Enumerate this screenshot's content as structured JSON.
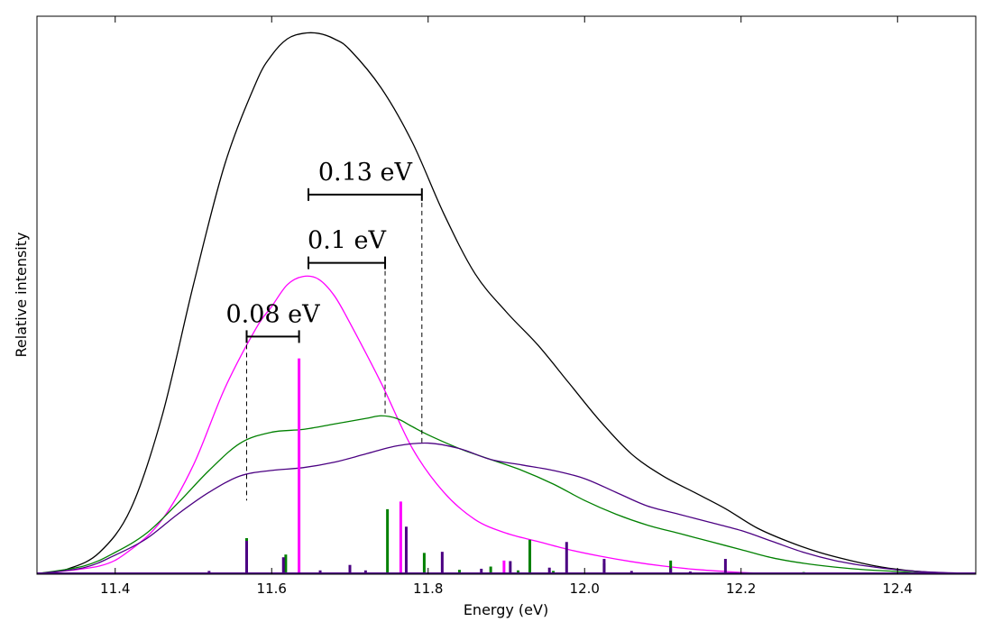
{
  "chart_data": {
    "type": "line",
    "title": "",
    "xlabel": "Energy (eV)",
    "ylabel": "Relative intensity",
    "xlim": [
      11.3,
      12.5
    ],
    "ylim": [
      0,
      1.0
    ],
    "xticks": [
      11.4,
      11.6,
      11.8,
      12.0,
      12.2,
      12.4
    ],
    "xtick_labels": [
      "11.4",
      "11.6",
      "11.8",
      "12.0",
      "12.2",
      "12.4"
    ],
    "yticks_shown": false,
    "grid": false,
    "legend": "none",
    "series": [
      {
        "color": "#000000",
        "kind": "envelope",
        "x": [
          11.3,
          11.34,
          11.38,
          11.42,
          11.46,
          11.5,
          11.54,
          11.58,
          11.6,
          11.62,
          11.64,
          11.66,
          11.68,
          11.7,
          11.74,
          11.78,
          11.82,
          11.86,
          11.9,
          11.94,
          11.98,
          12.02,
          12.06,
          12.1,
          12.14,
          12.18,
          12.22,
          12.26,
          12.3,
          12.34,
          12.38,
          12.42,
          12.46,
          12.5
        ],
        "y": [
          0.001,
          0.01,
          0.04,
          0.12,
          0.29,
          0.53,
          0.75,
          0.9,
          0.95,
          0.98,
          0.99,
          0.99,
          0.98,
          0.96,
          0.89,
          0.79,
          0.66,
          0.55,
          0.48,
          0.42,
          0.35,
          0.28,
          0.22,
          0.18,
          0.15,
          0.12,
          0.085,
          0.06,
          0.04,
          0.025,
          0.013,
          0.006,
          0.002,
          0.0007
        ]
      },
      {
        "color": "#ff00ff",
        "kind": "envelope",
        "x": [
          11.3,
          11.38,
          11.42,
          11.46,
          11.5,
          11.54,
          11.58,
          11.6,
          11.62,
          11.64,
          11.66,
          11.68,
          11.7,
          11.74,
          11.78,
          11.82,
          11.86,
          11.9,
          11.94,
          11.98,
          12.02,
          12.06,
          12.1,
          12.14,
          12.18,
          12.22,
          12.26
        ],
        "y": [
          0.001,
          0.015,
          0.045,
          0.1,
          0.2,
          0.34,
          0.45,
          0.49,
          0.53,
          0.545,
          0.54,
          0.51,
          0.46,
          0.35,
          0.23,
          0.15,
          0.1,
          0.075,
          0.06,
          0.045,
          0.033,
          0.023,
          0.015,
          0.009,
          0.005,
          0.002,
          0.0005
        ]
      },
      {
        "color": "#008000",
        "kind": "envelope",
        "x": [
          11.3,
          11.36,
          11.4,
          11.44,
          11.48,
          11.52,
          11.56,
          11.6,
          11.64,
          11.68,
          11.72,
          11.74,
          11.76,
          11.78,
          11.8,
          11.84,
          11.88,
          11.92,
          11.96,
          12.0,
          12.04,
          12.08,
          12.12,
          12.16,
          12.2,
          12.24,
          12.28,
          12.32,
          12.36,
          12.4,
          12.44,
          12.5
        ],
        "y": [
          0.001,
          0.015,
          0.04,
          0.075,
          0.13,
          0.19,
          0.24,
          0.26,
          0.265,
          0.275,
          0.285,
          0.29,
          0.285,
          0.27,
          0.255,
          0.23,
          0.21,
          0.19,
          0.165,
          0.135,
          0.11,
          0.09,
          0.075,
          0.06,
          0.045,
          0.03,
          0.02,
          0.013,
          0.008,
          0.005,
          0.002,
          0.0005
        ]
      },
      {
        "color": "#4b0082",
        "kind": "envelope",
        "x": [
          11.3,
          11.36,
          11.4,
          11.44,
          11.48,
          11.52,
          11.56,
          11.6,
          11.64,
          11.68,
          11.72,
          11.76,
          11.8,
          11.84,
          11.88,
          11.92,
          11.96,
          12.0,
          12.04,
          12.08,
          12.12,
          12.16,
          12.2,
          12.24,
          12.28,
          12.32,
          12.36,
          12.4,
          12.44,
          12.5
        ],
        "y": [
          0.001,
          0.012,
          0.035,
          0.065,
          0.11,
          0.15,
          0.18,
          0.19,
          0.195,
          0.205,
          0.22,
          0.235,
          0.24,
          0.23,
          0.21,
          0.2,
          0.19,
          0.175,
          0.15,
          0.125,
          0.11,
          0.095,
          0.08,
          0.06,
          0.04,
          0.025,
          0.015,
          0.008,
          0.004,
          0.001
        ]
      }
    ],
    "stick_series": [
      {
        "color": "#ff00ff",
        "x": [
          11.635,
          11.765,
          11.897
        ],
        "y": [
          0.395,
          0.133,
          0.025
        ]
      },
      {
        "color": "#008000",
        "x": [
          11.568,
          11.618,
          11.7,
          11.748,
          11.795,
          11.84,
          11.88,
          11.915,
          11.93,
          11.96,
          12.025,
          12.11,
          12.28
        ],
        "y": [
          0.066,
          0.036,
          0.016,
          0.119,
          0.039,
          0.008,
          0.014,
          0.007,
          0.063,
          0.006,
          0.02,
          0.025,
          0.004
        ]
      },
      {
        "color": "#4b0082",
        "x": [
          11.52,
          11.568,
          11.615,
          11.662,
          11.7,
          11.72,
          11.772,
          11.818,
          11.868,
          11.905,
          11.955,
          11.977,
          12.025,
          12.06,
          12.11,
          12.135,
          12.18,
          12.23,
          12.3
        ],
        "y": [
          0.006,
          0.061,
          0.031,
          0.007,
          0.017,
          0.007,
          0.087,
          0.041,
          0.01,
          0.024,
          0.012,
          0.059,
          0.028,
          0.006,
          0.011,
          0.005,
          0.028,
          0.003,
          0.002
        ]
      }
    ],
    "annotations": [
      {
        "label": "0.08 eV",
        "x1": 11.568,
        "x2": 11.635,
        "y": 0.435
      },
      {
        "label": "0.1 eV",
        "x1": 11.647,
        "x2": 11.745,
        "y": 0.57
      },
      {
        "label": "0.13 eV",
        "x1": 11.647,
        "x2": 11.792,
        "y": 0.695
      }
    ],
    "guide_lines": [
      {
        "x": 11.568,
        "y_top": 0.435,
        "y_bottom": 0.135
      },
      {
        "x": 11.745,
        "y_top": 0.57,
        "y_bottom": 0.29
      },
      {
        "x": 11.792,
        "y_top": 0.695,
        "y_bottom": 0.24
      }
    ]
  }
}
